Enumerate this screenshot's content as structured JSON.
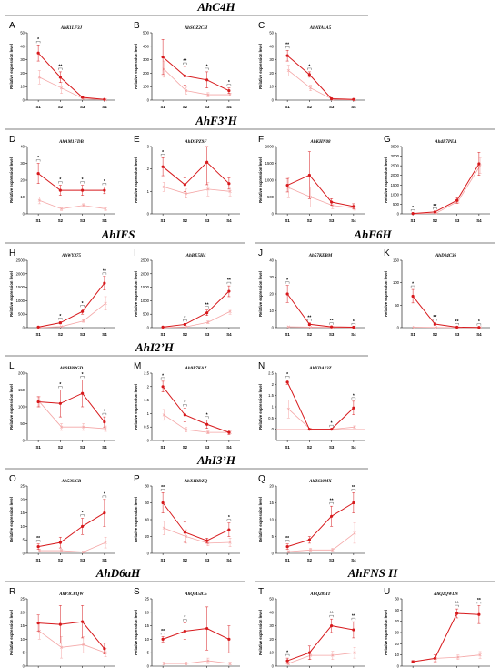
{
  "figure": {
    "groups": [
      {
        "title": "AhC4H"
      },
      {
        "title": "AhF3’H"
      },
      {
        "title": "AhIFS"
      },
      {
        "title": "AhF6H"
      },
      {
        "title": "AhI2’H"
      },
      {
        "title": "AhI3’H"
      },
      {
        "title": "AhD6aH"
      },
      {
        "title": "AhFNS II"
      }
    ],
    "ylabel": "Relative expression level",
    "colors": {
      "series1": "#d7191c",
      "series2": "#f4a6a6",
      "sig_bracket": "#444444"
    }
  },
  "chart_data": [
    {
      "type": "line",
      "letter": "A",
      "title": "AhK1LF3J",
      "categories": [
        "S1",
        "S2",
        "S3",
        "S4"
      ],
      "ylim": [
        0,
        50
      ],
      "yticks": [
        0,
        10,
        20,
        30,
        40,
        50
      ],
      "ylabel": "Relative expression level",
      "series": [
        {
          "values": [
            35,
            17,
            2,
            0.5
          ],
          "err": [
            6,
            4,
            0.5,
            0.2
          ]
        },
        {
          "values": [
            17,
            9,
            1,
            0.2
          ],
          "err": [
            5,
            4,
            0.4,
            0.1
          ]
        }
      ],
      "significance": [
        "*",
        "**",
        "",
        ""
      ]
    },
    {
      "type": "line",
      "letter": "B",
      "title": "AhSGZ2CH",
      "categories": [
        "S1",
        "S2",
        "S3",
        "S4"
      ],
      "ylim": [
        0,
        500
      ],
      "yticks": [
        0,
        100,
        200,
        300,
        400,
        500
      ],
      "ylabel": "Relative expression level",
      "series": [
        {
          "values": [
            320,
            180,
            150,
            70
          ],
          "err": [
            130,
            70,
            60,
            20
          ]
        },
        {
          "values": [
            230,
            70,
            40,
            40
          ],
          "err": [
            60,
            25,
            15,
            10
          ]
        }
      ],
      "significance": [
        "",
        "**",
        "*",
        "*"
      ]
    },
    {
      "type": "line",
      "letter": "C",
      "title": "AhAYA1A5",
      "categories": [
        "S1",
        "S2",
        "S3",
        "S4"
      ],
      "ylim": [
        0,
        50
      ],
      "yticks": [
        0,
        10,
        20,
        30,
        40,
        50
      ],
      "ylabel": "Relative expression level",
      "series": [
        {
          "values": [
            33,
            19,
            1,
            0.5
          ],
          "err": [
            4,
            2,
            0.5,
            0.2
          ]
        },
        {
          "values": [
            22,
            9,
            0.5,
            0.2
          ],
          "err": [
            4,
            2,
            0.3,
            0.1
          ]
        }
      ],
      "significance": [
        "**",
        "*",
        "",
        ""
      ]
    },
    {
      "type": "line",
      "letter": "D",
      "title": "AhAM1FDB",
      "categories": [
        "S1",
        "S2",
        "S3",
        "S4"
      ],
      "ylim": [
        0,
        40
      ],
      "yticks": [
        0,
        10,
        20,
        30,
        40
      ],
      "ylabel": "Relative expression level",
      "series": [
        {
          "values": [
            24,
            14,
            14,
            14
          ],
          "err": [
            6,
            3,
            3,
            2
          ]
        },
        {
          "values": [
            8,
            3,
            5,
            3
          ],
          "err": [
            2,
            1,
            1,
            1
          ]
        }
      ],
      "significance": [
        "*",
        "*",
        "*",
        "*"
      ]
    },
    {
      "type": "line",
      "letter": "E",
      "title": "AhD5PZ9F",
      "categories": [
        "S1",
        "S2",
        "S3",
        "S4"
      ],
      "ylim": [
        0,
        3
      ],
      "yticks": [
        0,
        1,
        2,
        3
      ],
      "ylabel": "Relative expression level",
      "series": [
        {
          "values": [
            2.1,
            1.3,
            2.3,
            1.35
          ],
          "err": [
            0.4,
            0.3,
            1,
            0.25
          ]
        },
        {
          "values": [
            1.2,
            0.9,
            1.1,
            1.0
          ],
          "err": [
            0.2,
            0.2,
            0.3,
            0.2
          ]
        }
      ],
      "significance": [
        "*",
        "",
        "",
        ""
      ]
    },
    {
      "type": "line",
      "letter": "F",
      "title": "AhKHN08",
      "categories": [
        "S1",
        "S2",
        "S3",
        "S4"
      ],
      "ylim": [
        0,
        2000
      ],
      "yticks": [
        0,
        500,
        1000,
        1500,
        2000
      ],
      "ylabel": "Relative expression level",
      "series": [
        {
          "values": [
            850,
            1150,
            350,
            220
          ],
          "err": [
            200,
            700,
            100,
            80
          ]
        },
        {
          "values": [
            780,
            500,
            250,
            170
          ],
          "err": [
            300,
            300,
            100,
            60
          ]
        }
      ],
      "significance": [
        "",
        "",
        "",
        ""
      ]
    },
    {
      "type": "line",
      "letter": "G",
      "title": "Ah4F7PEA",
      "categories": [
        "S1",
        "S2",
        "S3",
        "S4"
      ],
      "ylim": [
        0,
        3500
      ],
      "yticks": [
        0,
        500,
        1000,
        1500,
        2000,
        2500,
        3000,
        3500
      ],
      "ylabel": "Relative expression level",
      "series": [
        {
          "values": [
            20,
            100,
            700,
            2600
          ],
          "err": [
            10,
            30,
            150,
            600
          ]
        },
        {
          "values": [
            5,
            30,
            650,
            2500
          ],
          "err": [
            5,
            10,
            100,
            400
          ]
        }
      ],
      "significance": [
        "*",
        "**",
        "",
        ""
      ]
    },
    {
      "type": "line",
      "letter": "H",
      "title": "AhWY375",
      "categories": [
        "S1",
        "S2",
        "S3",
        "S4"
      ],
      "ylim": [
        0,
        2500
      ],
      "yticks": [
        0,
        500,
        1000,
        1500,
        2000,
        2500
      ],
      "ylabel": "Relative expression level",
      "series": [
        {
          "values": [
            20,
            180,
            600,
            1650
          ],
          "err": [
            5,
            40,
            100,
            250
          ]
        },
        {
          "values": [
            5,
            40,
            250,
            900
          ],
          "err": [
            2,
            10,
            50,
            250
          ]
        }
      ],
      "significance": [
        "",
        "*",
        "*",
        "**"
      ]
    },
    {
      "type": "line",
      "letter": "I",
      "title": "AhBE5H4",
      "categories": [
        "S1",
        "S2",
        "S3",
        "S4"
      ],
      "ylim": [
        0,
        2500
      ],
      "yticks": [
        0,
        500,
        1000,
        1500,
        2000,
        2500
      ],
      "ylabel": "Relative expression level",
      "series": [
        {
          "values": [
            20,
            120,
            550,
            1350
          ],
          "err": [
            5,
            40,
            100,
            200
          ]
        },
        {
          "values": [
            5,
            30,
            200,
            600
          ],
          "err": [
            2,
            10,
            50,
            100
          ]
        }
      ],
      "significance": [
        "",
        "*",
        "**",
        "**"
      ]
    },
    {
      "type": "line",
      "letter": "J",
      "title": "Ah57KEBM",
      "categories": [
        "S1",
        "S2",
        "S3",
        "S4"
      ],
      "ylim": [
        0,
        40
      ],
      "yticks": [
        0,
        10,
        20,
        30,
        40
      ],
      "ylabel": "Relative expression level",
      "series": [
        {
          "values": [
            20,
            2,
            0.5,
            0.3
          ],
          "err": [
            5,
            0.8,
            0.2,
            0.1
          ]
        },
        {
          "values": [
            0.5,
            0.3,
            0.2,
            0.1
          ],
          "err": [
            0.2,
            0.1,
            0.1,
            0.1
          ]
        }
      ],
      "significance": [
        "*",
        "**",
        "**",
        "*"
      ]
    },
    {
      "type": "line",
      "letter": "K",
      "title": "AhD04C36",
      "categories": [
        "S1",
        "S2",
        "S3",
        "S4"
      ],
      "ylim": [
        0,
        150
      ],
      "yticks": [
        0,
        50,
        100,
        150
      ],
      "ylabel": "Relative expression level",
      "series": [
        {
          "values": [
            70,
            8,
            1,
            0.5
          ],
          "err": [
            15,
            3,
            0.5,
            0.2
          ]
        },
        {
          "values": [
            1,
            0.5,
            0.3,
            0.2
          ],
          "err": [
            0.5,
            0.2,
            0.1,
            0.1
          ]
        }
      ],
      "significance": [
        "*",
        "**",
        "**",
        "*"
      ]
    },
    {
      "type": "line",
      "letter": "L",
      "title": "Ah9H8RGD",
      "categories": [
        "S1",
        "S2",
        "S3",
        "S4"
      ],
      "ylim": [
        0,
        200
      ],
      "yticks": [
        0,
        50,
        100,
        150,
        200
      ],
      "ylabel": "Relative expression level",
      "series": [
        {
          "values": [
            115,
            110,
            140,
            55
          ],
          "err": [
            15,
            40,
            40,
            15
          ]
        },
        {
          "values": [
            115,
            40,
            40,
            35
          ],
          "err": [
            15,
            10,
            10,
            8
          ]
        }
      ],
      "significance": [
        "",
        "*",
        "*",
        "*"
      ]
    },
    {
      "type": "line",
      "letter": "M",
      "title": "Ah9P7KAZ",
      "categories": [
        "S1",
        "S2",
        "S3",
        "S4"
      ],
      "ylim": [
        0,
        2.5
      ],
      "yticks": [
        0,
        0.5,
        1,
        1.5,
        2,
        2.5
      ],
      "ylabel": "Relative expression level",
      "series": [
        {
          "values": [
            2.0,
            0.95,
            0.6,
            0.3
          ],
          "err": [
            0.2,
            0.25,
            0.15,
            0.08
          ]
        },
        {
          "values": [
            0.95,
            0.4,
            0.3,
            0.3
          ],
          "err": [
            0.2,
            0.08,
            0.05,
            0.05
          ]
        }
      ],
      "significance": [
        "*",
        "*",
        "*",
        ""
      ]
    },
    {
      "type": "line",
      "letter": "N",
      "title": "AhXDA13Z",
      "categories": [
        "S1",
        "S2",
        "S3",
        "S4"
      ],
      "ylim": [
        -0.5,
        2.5
      ],
      "yticks": [
        0,
        0.5,
        1,
        1.5,
        2,
        2.5
      ],
      "ylabel": "Relative expression level",
      "series": [
        {
          "values": [
            2.1,
            0.0,
            0.0,
            0.95
          ],
          "err": [
            0.1,
            0.02,
            0.02,
            0.3
          ]
        },
        {
          "values": [
            0.9,
            0.0,
            0.0,
            0.1
          ],
          "err": [
            0.4,
            0.02,
            0.02,
            0.05
          ]
        }
      ],
      "significance": [
        "*",
        "",
        "*",
        "*"
      ]
    },
    {
      "type": "line",
      "letter": "O",
      "title": "Ah53UCR",
      "categories": [
        "S1",
        "S2",
        "S3",
        "S4"
      ],
      "ylim": [
        0,
        25
      ],
      "yticks": [
        0,
        5,
        10,
        15,
        20,
        25
      ],
      "ylabel": "Relative expression level",
      "series": [
        {
          "values": [
            2.5,
            4,
            10,
            15
          ],
          "err": [
            1,
            2,
            3,
            5
          ]
        },
        {
          "values": [
            1,
            1,
            0.5,
            4
          ],
          "err": [
            0.5,
            0.5,
            0.3,
            2
          ]
        }
      ],
      "significance": [
        "**",
        "",
        "*",
        "*"
      ]
    },
    {
      "type": "line",
      "letter": "P",
      "title": "AhX1BDZQ",
      "categories": [
        "S1",
        "S2",
        "S3",
        "S4"
      ],
      "ylim": [
        0,
        80
      ],
      "yticks": [
        0,
        20,
        40,
        60,
        80
      ],
      "ylabel": "Relative expression level",
      "series": [
        {
          "values": [
            60,
            25,
            15,
            28
          ],
          "err": [
            12,
            12,
            3,
            8
          ]
        },
        {
          "values": [
            30,
            20,
            12,
            13
          ],
          "err": [
            8,
            8,
            3,
            5
          ]
        }
      ],
      "significance": [
        "**",
        "",
        "",
        "*"
      ]
    },
    {
      "type": "line",
      "letter": "Q",
      "title": "AhZ630MX",
      "categories": [
        "S1",
        "S2",
        "S3",
        "S4"
      ],
      "ylim": [
        0,
        20
      ],
      "yticks": [
        0,
        5,
        10,
        15,
        20
      ],
      "ylabel": "Relative expression level",
      "series": [
        {
          "values": [
            2,
            4,
            11,
            15
          ],
          "err": [
            0.8,
            1,
            3,
            3
          ]
        },
        {
          "values": [
            0.5,
            1,
            1,
            6
          ],
          "err": [
            0.3,
            0.5,
            0.5,
            3
          ]
        }
      ],
      "significance": [
        "**",
        "",
        "**",
        "**"
      ]
    },
    {
      "type": "line",
      "letter": "R",
      "title": "AhP3CRQW",
      "categories": [
        "S1",
        "S2",
        "S3",
        "S4"
      ],
      "ylim": [
        0,
        25
      ],
      "yticks": [
        0,
        5,
        10,
        15,
        20,
        25
      ],
      "ylabel": "Relative expression level",
      "series": [
        {
          "values": [
            16,
            15.5,
            16.5,
            6.5
          ],
          "err": [
            3,
            7,
            6,
            2
          ]
        },
        {
          "values": [
            13,
            7,
            8,
            5
          ],
          "err": [
            3,
            4,
            3,
            1.5
          ]
        }
      ],
      "significance": [
        "",
        "",
        "",
        ""
      ]
    },
    {
      "type": "line",
      "letter": "S",
      "title": "AhQM5IC5",
      "categories": [
        "S1",
        "S2",
        "S3",
        "S4"
      ],
      "ylim": [
        0,
        25
      ],
      "yticks": [
        0,
        5,
        10,
        15,
        20,
        25
      ],
      "ylabel": "Relative expression level",
      "series": [
        {
          "values": [
            10,
            13,
            14,
            10
          ],
          "err": [
            1,
            3,
            8,
            5
          ]
        },
        {
          "values": [
            1,
            1,
            2,
            1
          ],
          "err": [
            0.5,
            0.5,
            1,
            0.5
          ]
        }
      ],
      "significance": [
        "**",
        "*",
        "",
        ""
      ]
    },
    {
      "type": "line",
      "letter": "T",
      "title": "AhQ285IT",
      "categories": [
        "S1",
        "S2",
        "S3",
        "S4"
      ],
      "ylim": [
        0,
        50
      ],
      "yticks": [
        0,
        10,
        20,
        30,
        40,
        50
      ],
      "ylabel": "Relative expression level",
      "series": [
        {
          "values": [
            4,
            10,
            30,
            27
          ],
          "err": [
            2,
            5,
            5,
            6
          ]
        },
        {
          "values": [
            2,
            8,
            8,
            10
          ],
          "err": [
            1,
            3,
            3,
            4
          ]
        }
      ],
      "significance": [
        "*",
        "",
        "**",
        "**"
      ]
    },
    {
      "type": "line",
      "letter": "U",
      "title": "AhQ2QWLN",
      "categories": [
        "S1",
        "S2",
        "S3",
        "S4"
      ],
      "ylim": [
        0,
        60
      ],
      "yticks": [
        0,
        10,
        20,
        30,
        40,
        50,
        60
      ],
      "ylabel": "Relative expression level",
      "series": [
        {
          "values": [
            4,
            7,
            47,
            46
          ],
          "err": [
            1,
            3,
            4,
            8
          ]
        },
        {
          "values": [
            4,
            7,
            8,
            10
          ],
          "err": [
            1,
            3,
            2,
            3
          ]
        }
      ],
      "significance": [
        "",
        "",
        "**",
        "**"
      ]
    }
  ]
}
